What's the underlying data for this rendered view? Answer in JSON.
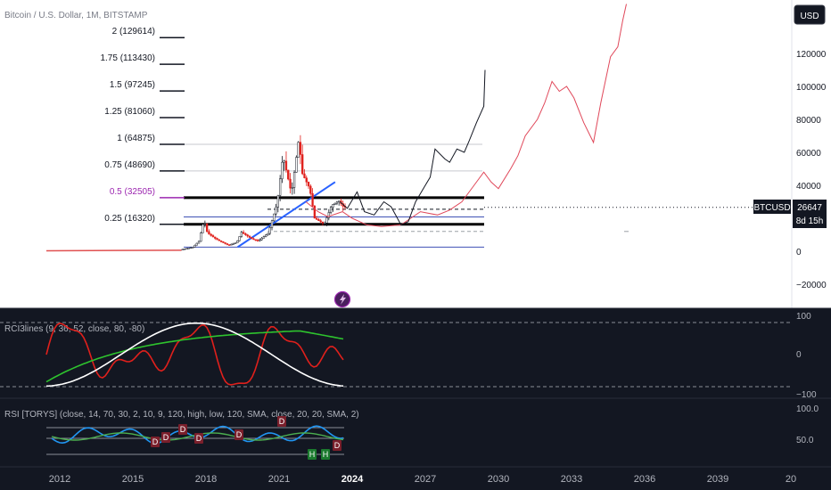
{
  "chart_title": "Bitcoin / U.S. Dollar, 1M, BITSTAMP",
  "currency_button": "USD",
  "price_axis": {
    "ticks": [
      120000,
      100000,
      80000,
      60000,
      40000,
      20000,
      0,
      -20000
    ],
    "tick_labels": [
      "120000",
      "100000",
      "80000",
      "60000",
      "40000",
      "20000",
      "0",
      "−20000"
    ]
  },
  "symbol_badge": {
    "symbol": "BTCUSD",
    "price": "26647",
    "countdown": "8d 15h"
  },
  "fib_levels": [
    {
      "label": "2 (129614)",
      "value": 129614,
      "color": "#131722"
    },
    {
      "label": "1.75 (113430)",
      "value": 113430,
      "color": "#131722"
    },
    {
      "label": "1.5 (97245)",
      "value": 97245,
      "color": "#131722"
    },
    {
      "label": "1.25 (81060)",
      "value": 81060,
      "color": "#131722"
    },
    {
      "label": "1 (64875)",
      "value": 64875,
      "color": "#131722"
    },
    {
      "label": "0.75 (48690)",
      "value": 48690,
      "color": "#131722"
    },
    {
      "label": "0.5 (32505)",
      "value": 32505,
      "color": "#9c27b0"
    },
    {
      "label": "0.25 (16320)",
      "value": 16320,
      "color": "#131722"
    }
  ],
  "lightning_icon": "lightning-icon",
  "time_axis": {
    "labels": [
      "2012",
      "2015",
      "2018",
      "2021",
      "2024",
      "2027",
      "2030",
      "2033",
      "2036",
      "2039",
      "20"
    ],
    "bold_label": "2024"
  },
  "rci_panel": {
    "title": "RCI3lines (9, 36, 52, close, 80, -80)",
    "scale_labels": [
      "100",
      "0",
      "−100"
    ]
  },
  "rsi_panel": {
    "title": "RSI [TORYS] (close, 14, 70, 30, 2, 10, 9, 120, high, low, 120, SMA, close, 20, 20, SMA, 2)",
    "scale_labels": [
      "100.0",
      "50.0"
    ],
    "markers": [
      "D",
      "D",
      "D",
      "D",
      "D",
      "D",
      "H",
      "H",
      "D"
    ]
  },
  "chart_data": {
    "type": "candlestick",
    "title": "Bitcoin / U.S. Dollar, 1M, BITSTAMP",
    "y_range": [
      -35000,
      145000
    ],
    "x_range": [
      2011.0,
      2041.0
    ],
    "grid": false,
    "current_price": 26647,
    "horizontal_levels": [
      32505,
      16320,
      23000,
      12000,
      2500,
      19000,
      64875,
      48690
    ],
    "trendline": [
      [
        2019.3,
        2500
      ],
      [
        2023.3,
        42000
      ]
    ],
    "price_history": [
      [
        2013.0,
        200
      ],
      [
        2014.0,
        800
      ],
      [
        2015.0,
        300
      ],
      [
        2016.0,
        430
      ],
      [
        2017.0,
        1000
      ],
      [
        2017.5,
        2500
      ],
      [
        2017.75,
        6000
      ],
      [
        2017.96,
        19000
      ],
      [
        2018.1,
        11000
      ],
      [
        2018.5,
        7000
      ],
      [
        2018.96,
        3700
      ],
      [
        2019.3,
        5300
      ],
      [
        2019.5,
        11500
      ],
      [
        2019.96,
        7200
      ],
      [
        2020.2,
        6400
      ],
      [
        2020.6,
        11000
      ],
      [
        2020.96,
        29000
      ],
      [
        2021.2,
        58000
      ],
      [
        2021.55,
        35000
      ],
      [
        2021.85,
        68000
      ],
      [
        2022.0,
        47000
      ],
      [
        2022.3,
        38000
      ],
      [
        2022.5,
        20000
      ],
      [
        2022.9,
        16500
      ],
      [
        2023.2,
        28000
      ],
      [
        2023.5,
        30500
      ],
      [
        2023.7,
        26647
      ]
    ],
    "projection_black": [
      [
        2023.5,
        30000
      ],
      [
        2023.8,
        26000
      ],
      [
        2024.2,
        36000
      ],
      [
        2024.5,
        24000
      ],
      [
        2024.9,
        22000
      ],
      [
        2025.3,
        30000
      ],
      [
        2025.6,
        27000
      ],
      [
        2026.0,
        16000
      ],
      [
        2026.3,
        18000
      ],
      [
        2026.6,
        30000
      ],
      [
        2027.0,
        40000
      ],
      [
        2027.2,
        45000
      ],
      [
        2027.4,
        62000
      ],
      [
        2027.8,
        56000
      ],
      [
        2028.0,
        54000
      ],
      [
        2028.3,
        62000
      ],
      [
        2028.6,
        60000
      ],
      [
        2028.8,
        67000
      ],
      [
        2029.1,
        78000
      ],
      [
        2029.4,
        88000
      ],
      [
        2029.45,
        110000
      ]
    ],
    "projection_red": [
      [
        2022.1,
        30000
      ],
      [
        2022.6,
        24000
      ],
      [
        2023.0,
        21000
      ],
      [
        2023.6,
        24000
      ],
      [
        2024.0,
        20000
      ],
      [
        2024.6,
        16000
      ],
      [
        2025.2,
        15000
      ],
      [
        2026.0,
        16000
      ],
      [
        2026.8,
        24000
      ],
      [
        2027.5,
        22000
      ],
      [
        2028.0,
        25000
      ],
      [
        2028.5,
        30000
      ],
      [
        2029.0,
        40000
      ],
      [
        2029.4,
        48000
      ],
      [
        2029.7,
        42000
      ],
      [
        2030.0,
        38000
      ],
      [
        2030.5,
        50000
      ],
      [
        2030.8,
        58000
      ],
      [
        2031.1,
        70000
      ],
      [
        2031.6,
        80000
      ],
      [
        2031.9,
        90000
      ],
      [
        2032.2,
        103000
      ],
      [
        2032.5,
        97000
      ],
      [
        2032.8,
        100000
      ],
      [
        2033.1,
        93000
      ],
      [
        2033.5,
        78000
      ],
      [
        2033.9,
        66000
      ],
      [
        2034.2,
        90000
      ],
      [
        2034.6,
        118000
      ],
      [
        2034.9,
        124000
      ],
      [
        2035.1,
        140000
      ],
      [
        2035.25,
        150000
      ]
    ]
  }
}
